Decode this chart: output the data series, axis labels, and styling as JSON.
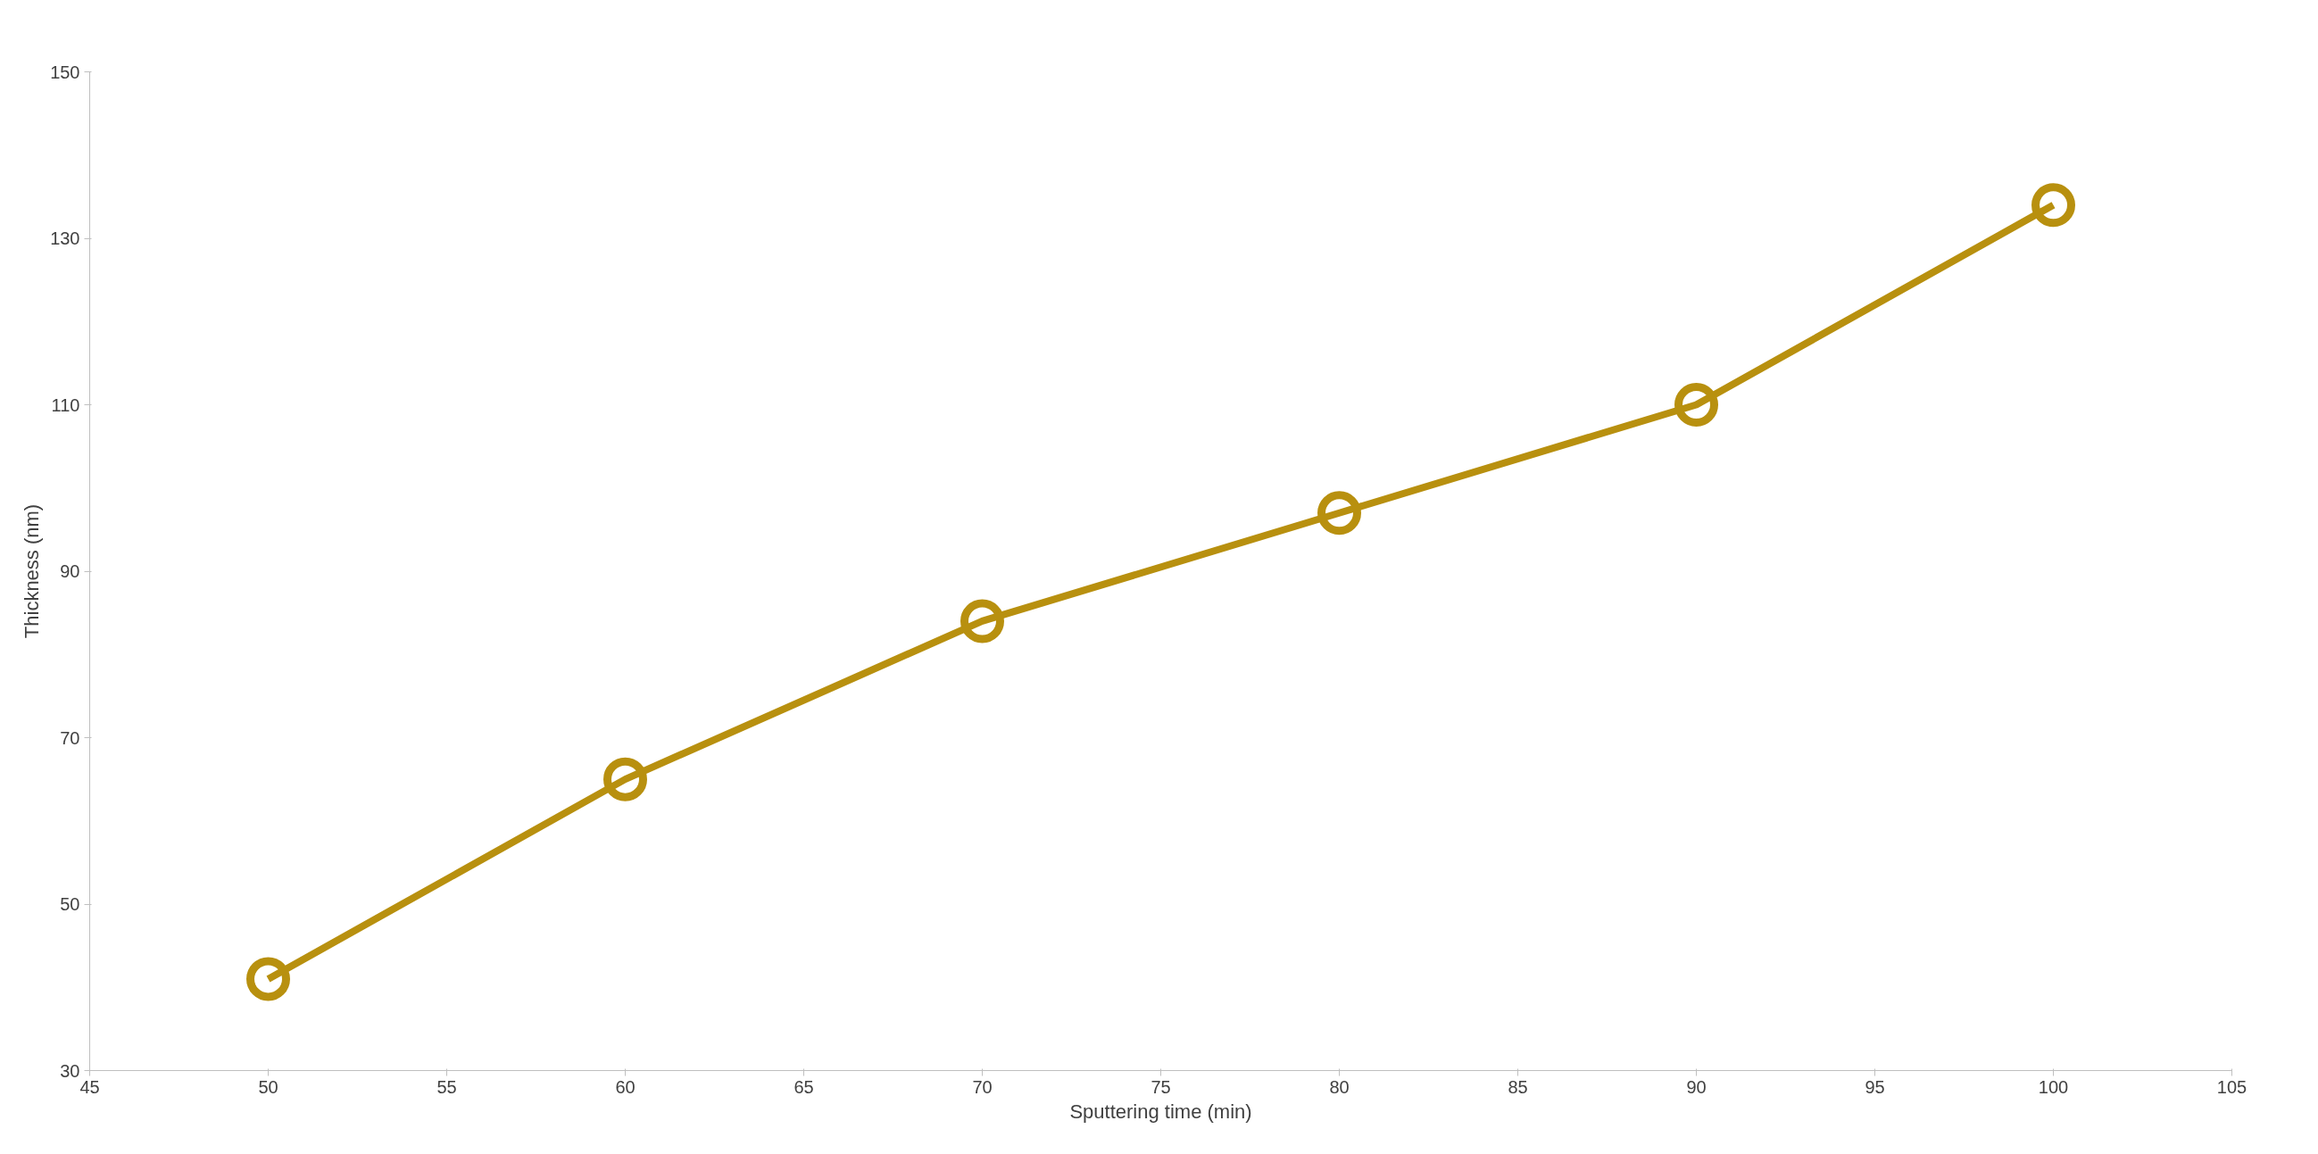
{
  "chart_data": {
    "type": "line",
    "xlabel": "Sputtering time (min)",
    "ylabel": "Thickness (nm)",
    "x": [
      50,
      60,
      70,
      80,
      90,
      100
    ],
    "series": [
      {
        "color": "#b8900f",
        "values": [
          41,
          65,
          84,
          97,
          110,
          134
        ]
      }
    ],
    "xlim": [
      45,
      105
    ],
    "xticks": [
      45,
      50,
      55,
      60,
      65,
      70,
      75,
      80,
      85,
      90,
      95,
      100,
      105
    ],
    "ylim": [
      30,
      150
    ],
    "yticks": [
      30,
      50,
      70,
      90,
      110,
      130,
      150
    ],
    "grid": false,
    "marker": "circle",
    "line_style": "solid"
  }
}
